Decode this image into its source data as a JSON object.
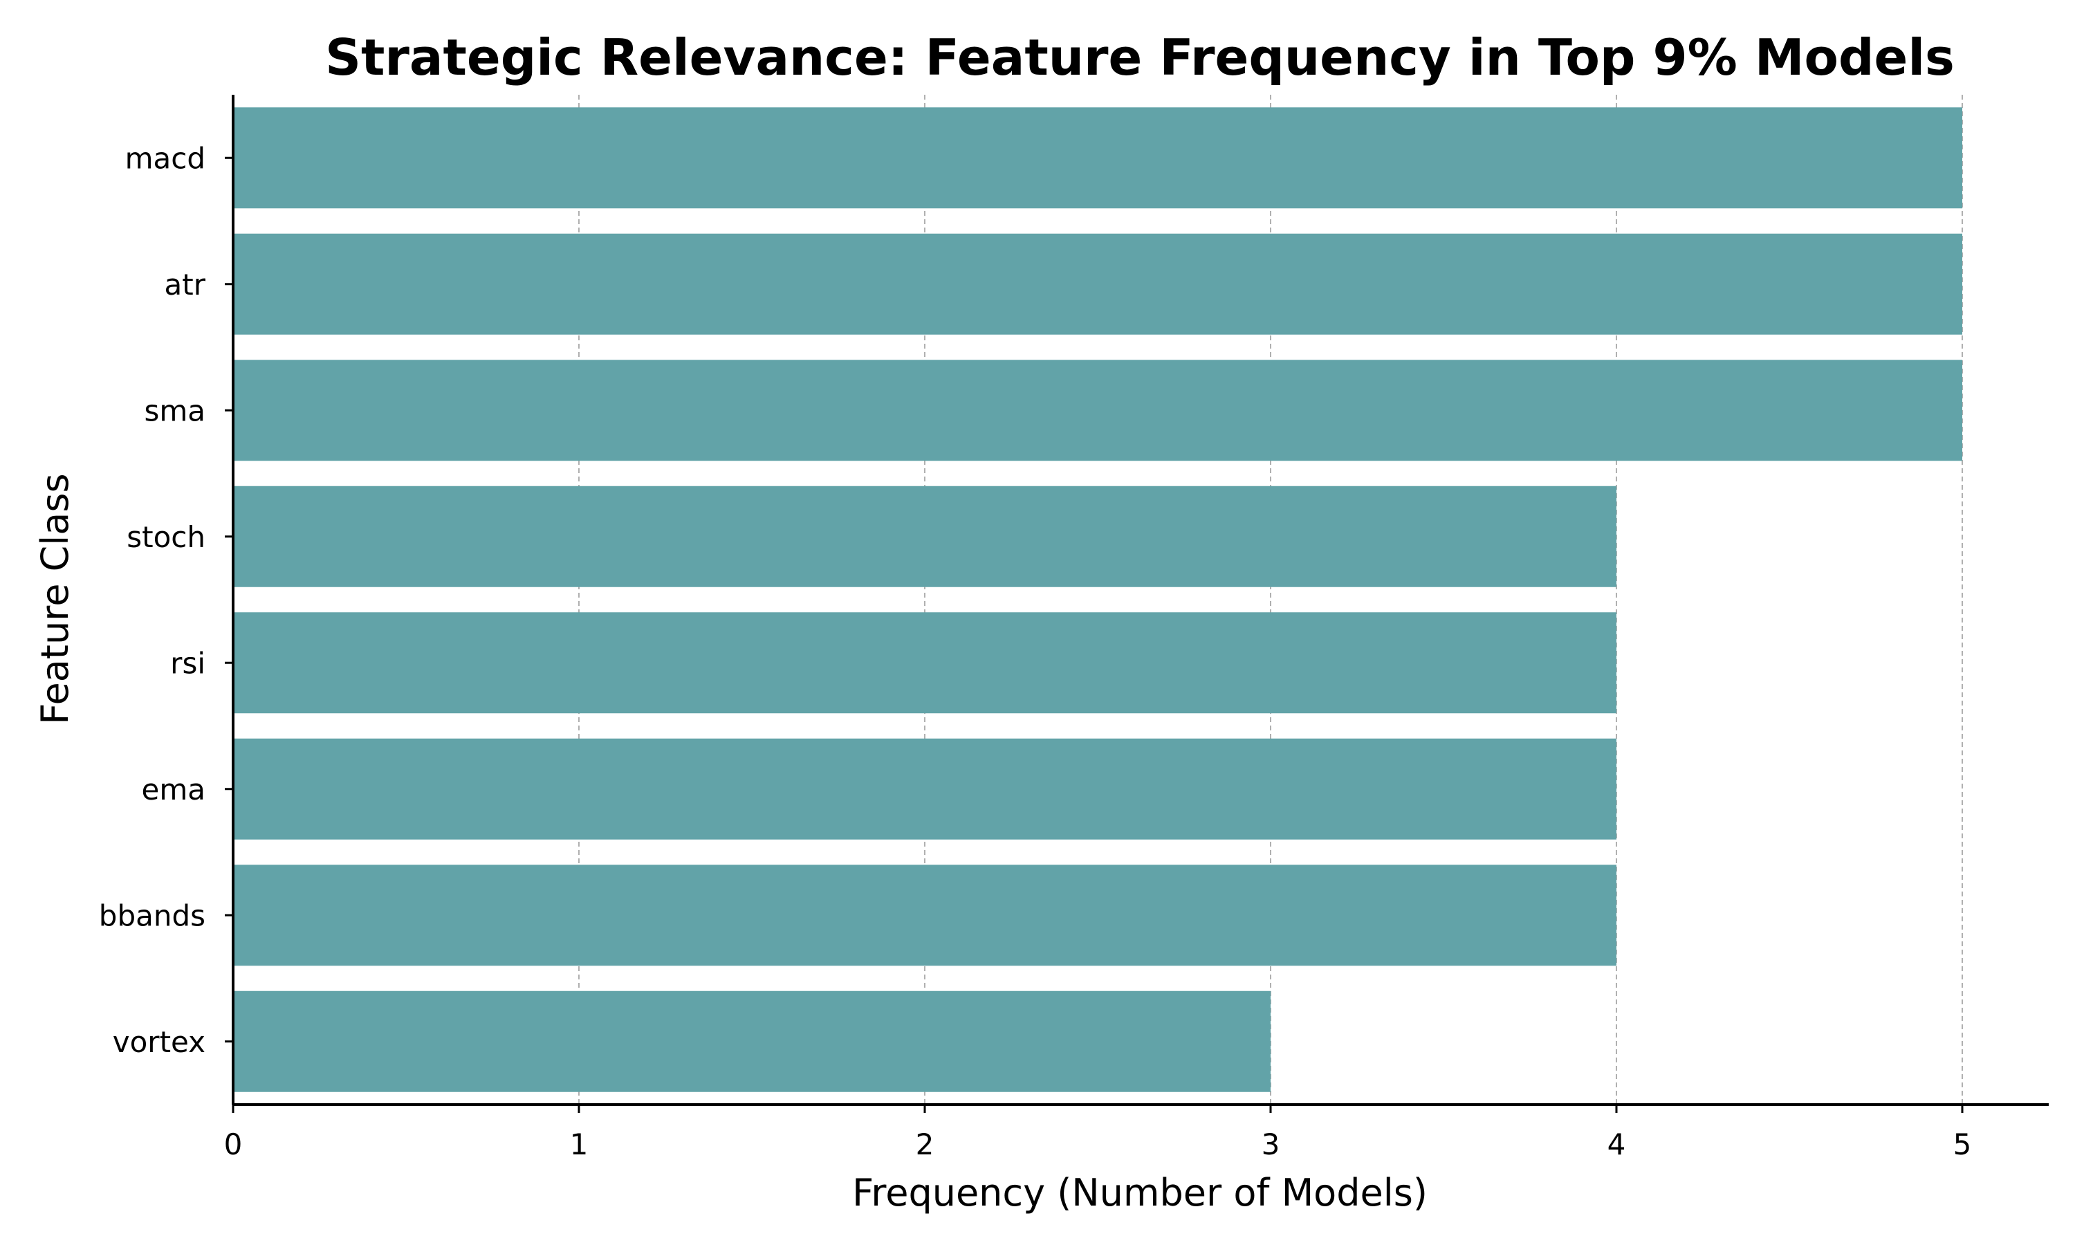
{
  "chart_data": {
    "type": "bar",
    "orientation": "horizontal",
    "title": "Strategic Relevance: Feature Frequency in Top 9% Models",
    "xlabel": "Frequency (Number of Models)",
    "ylabel": "Feature Class",
    "categories": [
      "macd",
      "atr",
      "sma",
      "stoch",
      "rsi",
      "ema",
      "bbands",
      "vortex"
    ],
    "values": [
      5,
      5,
      5,
      4,
      4,
      4,
      4,
      3
    ],
    "xlim": [
      0,
      5.25
    ],
    "xticks": [
      "0",
      "1",
      "2",
      "3",
      "4",
      "5"
    ],
    "grid": "vertical dashed",
    "bar_color": "#62a3a8",
    "legend": "none"
  }
}
